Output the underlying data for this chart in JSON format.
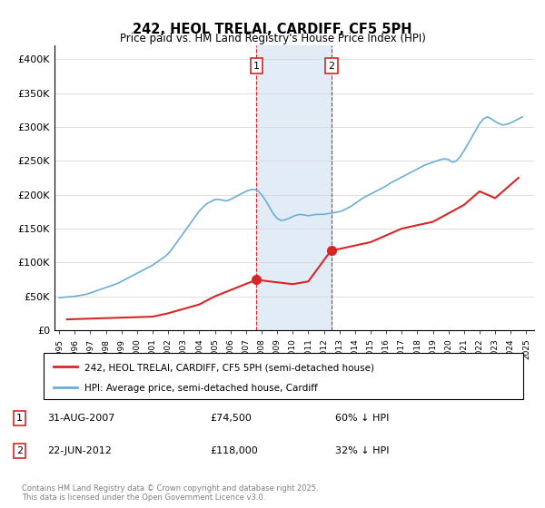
{
  "title": "242, HEOL TRELAI, CARDIFF, CF5 5PH",
  "subtitle": "Price paid vs. HM Land Registry's House Price Index (HPI)",
  "title_fontsize": 11,
  "subtitle_fontsize": 9,
  "ylabel_ticks": [
    "£0",
    "£50K",
    "£100K",
    "£150K",
    "£200K",
    "£250K",
    "£300K",
    "£350K",
    "£400K"
  ],
  "ytick_values": [
    0,
    50000,
    100000,
    150000,
    200000,
    250000,
    300000,
    350000,
    400000
  ],
  "ylim": [
    0,
    420000
  ],
  "xlim_start": 1995,
  "xlim_end": 2025.5,
  "hpi_color": "#6baed6",
  "house_color": "#d62728",
  "annotation_box_color": "#d62728",
  "shading_color": "#c6dbef",
  "transaction1_date": 2007.67,
  "transaction2_date": 2012.47,
  "transaction1_price": 74500,
  "transaction2_price": 118000,
  "legend_house_label": "242, HEOL TRELAI, CARDIFF, CF5 5PH (semi-detached house)",
  "legend_hpi_label": "HPI: Average price, semi-detached house, Cardiff",
  "table_row1": "1    31-AUG-2007         £74,500          60% ↓ HPI",
  "table_row2": "2    22-JUN-2012         £118,000        32% ↓ HPI",
  "footer": "Contains HM Land Registry data © Crown copyright and database right 2025.\nThis data is licensed under the Open Government Licence v3.0.",
  "hpi_data": {
    "years": [
      1995.0,
      1995.25,
      1995.5,
      1995.75,
      1996.0,
      1996.25,
      1996.5,
      1996.75,
      1997.0,
      1997.25,
      1997.5,
      1997.75,
      1998.0,
      1998.25,
      1998.5,
      1998.75,
      1999.0,
      1999.25,
      1999.5,
      1999.75,
      2000.0,
      2000.25,
      2000.5,
      2000.75,
      2001.0,
      2001.25,
      2001.5,
      2001.75,
      2002.0,
      2002.25,
      2002.5,
      2002.75,
      2003.0,
      2003.25,
      2003.5,
      2003.75,
      2004.0,
      2004.25,
      2004.5,
      2004.75,
      2005.0,
      2005.25,
      2005.5,
      2005.75,
      2006.0,
      2006.25,
      2006.5,
      2006.75,
      2007.0,
      2007.25,
      2007.5,
      2007.75,
      2008.0,
      2008.25,
      2008.5,
      2008.75,
      2009.0,
      2009.25,
      2009.5,
      2009.75,
      2010.0,
      2010.25,
      2010.5,
      2010.75,
      2011.0,
      2011.25,
      2011.5,
      2011.75,
      2012.0,
      2012.25,
      2012.5,
      2012.75,
      2013.0,
      2013.25,
      2013.5,
      2013.75,
      2014.0,
      2014.25,
      2014.5,
      2014.75,
      2015.0,
      2015.25,
      2015.5,
      2015.75,
      2016.0,
      2016.25,
      2016.5,
      2016.75,
      2017.0,
      2017.25,
      2017.5,
      2017.75,
      2018.0,
      2018.25,
      2018.5,
      2018.75,
      2019.0,
      2019.25,
      2019.5,
      2019.75,
      2020.0,
      2020.25,
      2020.5,
      2020.75,
      2021.0,
      2021.25,
      2021.5,
      2021.75,
      2022.0,
      2022.25,
      2022.5,
      2022.75,
      2023.0,
      2023.25,
      2023.5,
      2023.75,
      2024.0,
      2024.25,
      2024.5,
      2024.75
    ],
    "values": [
      48000,
      48500,
      49000,
      49500,
      50000,
      51000,
      52000,
      53000,
      55000,
      57000,
      59000,
      61000,
      63000,
      65000,
      67000,
      69000,
      72000,
      75000,
      78000,
      81000,
      84000,
      87000,
      90000,
      93000,
      96000,
      100000,
      104000,
      108000,
      113000,
      120000,
      128000,
      136000,
      144000,
      152000,
      160000,
      168000,
      176000,
      182000,
      187000,
      190000,
      193000,
      193000,
      192000,
      191000,
      193000,
      196000,
      199000,
      202000,
      205000,
      207000,
      208000,
      206000,
      200000,
      192000,
      182000,
      172000,
      165000,
      162000,
      163000,
      165000,
      168000,
      170000,
      171000,
      170000,
      169000,
      170000,
      171000,
      171000,
      171000,
      172000,
      173000,
      174000,
      175000,
      177000,
      180000,
      183000,
      187000,
      191000,
      195000,
      198000,
      201000,
      204000,
      207000,
      210000,
      213000,
      217000,
      220000,
      223000,
      226000,
      229000,
      232000,
      235000,
      238000,
      241000,
      244000,
      246000,
      248000,
      250000,
      252000,
      253000,
      252000,
      248000,
      250000,
      256000,
      265000,
      275000,
      285000,
      295000,
      305000,
      312000,
      315000,
      312000,
      308000,
      305000,
      303000,
      304000,
      306000,
      309000,
      312000,
      315000
    ]
  },
  "house_data": {
    "years": [
      1995.5,
      2001.0,
      2002.0,
      2004.0,
      2005.0,
      2007.67,
      2008.5,
      2010.0,
      2011.0,
      2012.47,
      2013.0,
      2015.0,
      2017.0,
      2019.0,
      2021.0,
      2022.0,
      2023.0,
      2024.0,
      2024.5
    ],
    "values": [
      16000,
      20000,
      25000,
      38000,
      50000,
      74500,
      72000,
      68000,
      72000,
      118000,
      120000,
      130000,
      150000,
      160000,
      185000,
      205000,
      195000,
      215000,
      225000
    ]
  }
}
